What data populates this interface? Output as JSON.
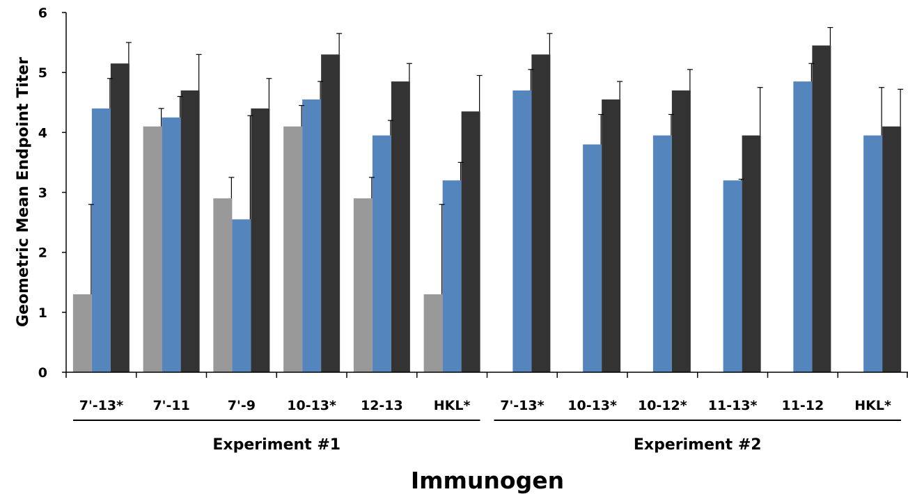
{
  "chart_data": {
    "type": "bar",
    "xlabel": "Immunogen",
    "ylabel": "Geometric Mean Endpoint Titer",
    "ylim": [
      0,
      6
    ],
    "yticks": [
      "0",
      "1",
      "2",
      "3",
      "4",
      "5",
      "6"
    ],
    "grid": false,
    "legend": "none",
    "colors": [
      "#999999",
      "#5585bd",
      "#333333"
    ],
    "groups": [
      {
        "label": "Experiment #1",
        "categories": [
          "7'-13*",
          "7'-11",
          "7'-9",
          "10-13*",
          "12-13",
          "HKL*"
        ]
      },
      {
        "label": "Experiment #2",
        "categories": [
          "7'-13*",
          "10-13*",
          "10-12*",
          "11-13*",
          "11-12",
          "HKL*"
        ]
      }
    ],
    "categories": [
      "7'-13*",
      "7'-11",
      "7'-9",
      "10-13*",
      "12-13",
      "HKL*",
      "7'-13*",
      "10-13*",
      "10-12*",
      "11-13*",
      "11-12",
      "HKL*"
    ],
    "series": [
      {
        "color": "#999999",
        "values": [
          1.3,
          4.1,
          2.9,
          4.1,
          2.9,
          1.3,
          null,
          null,
          null,
          null,
          null,
          null
        ],
        "errors": [
          1.5,
          0.3,
          0.35,
          0.35,
          0.35,
          1.5,
          null,
          null,
          null,
          null,
          null,
          null
        ]
      },
      {
        "color": "#5585bd",
        "values": [
          4.4,
          4.25,
          2.55,
          4.55,
          3.95,
          3.2,
          4.7,
          3.8,
          3.95,
          3.2,
          4.85,
          3.95
        ],
        "errors": [
          0.5,
          0.35,
          1.73,
          0.3,
          0.25,
          0.3,
          0.35,
          0.5,
          0.35,
          0.02,
          0.3,
          0.8
        ]
      },
      {
        "color": "#333333",
        "values": [
          5.15,
          4.7,
          4.4,
          5.3,
          4.85,
          4.35,
          5.3,
          4.55,
          4.7,
          3.95,
          5.45,
          4.1
        ],
        "errors": [
          0.35,
          0.6,
          0.5,
          0.35,
          0.3,
          0.6,
          0.35,
          0.3,
          0.35,
          0.8,
          0.3,
          0.62
        ]
      }
    ]
  }
}
